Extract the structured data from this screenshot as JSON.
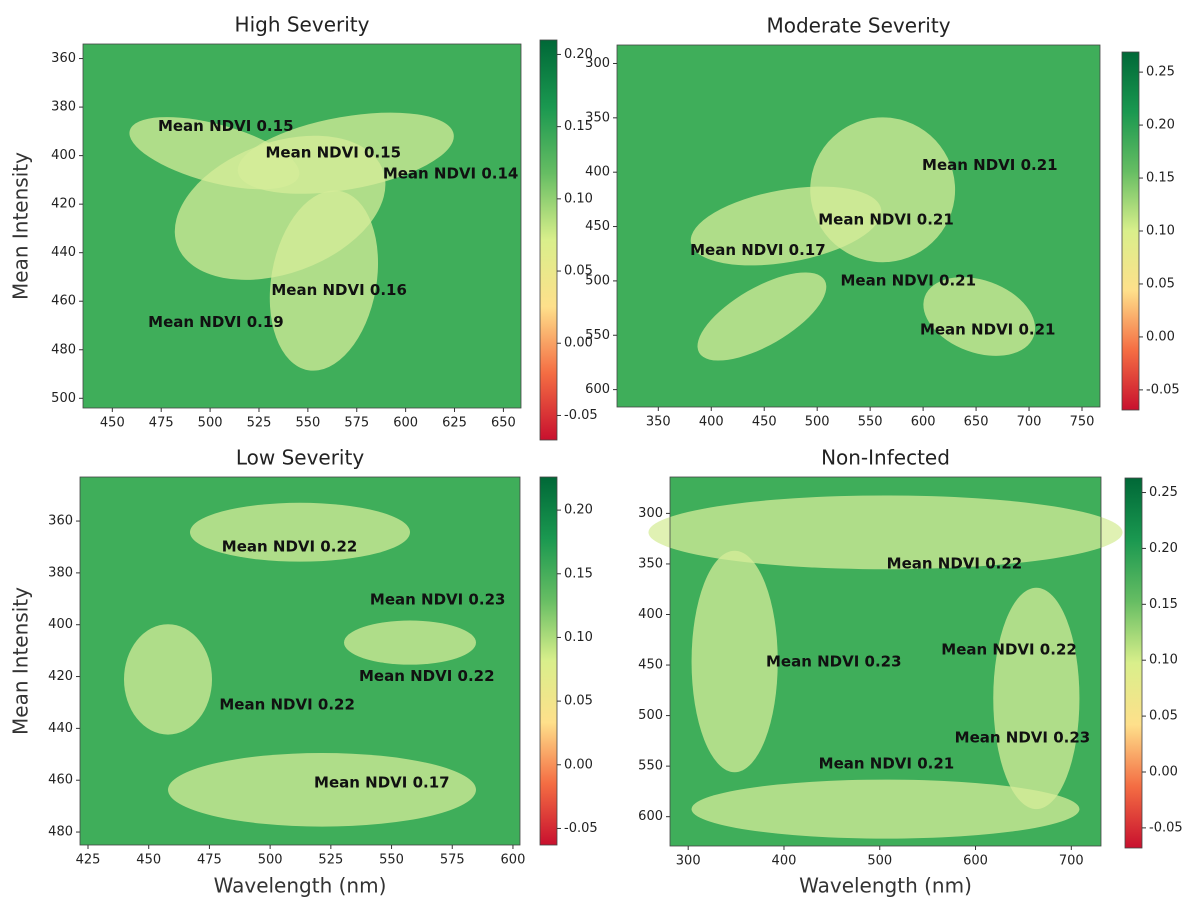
{
  "chart_data": [
    {
      "type": "heatmap",
      "title": "High Severity",
      "ylabel": "Mean Intensity",
      "xlim": [
        435,
        659
      ],
      "xticks": [
        450,
        475,
        500,
        525,
        550,
        575,
        600,
        625,
        650
      ],
      "ylim": [
        354,
        504
      ],
      "yinverted": true,
      "yticks": [
        360,
        380,
        400,
        420,
        440,
        460,
        480,
        500
      ],
      "colorbar": {
        "lim": [
          -0.067,
          0.21
        ],
        "ticks": [
          -0.05,
          {
            "value": 0,
            "label": "0.00"
          },
          0.05,
          {
            "value": 0.1,
            "label": "0.10"
          },
          0.15,
          {
            "value": 0.2,
            "label": "0.20"
          }
        ]
      },
      "colormap": [
        "#c8102e",
        "#f46d43",
        "#fee08b",
        "#d9ef8b",
        "#66bd63",
        "#1a9850",
        "#006837"
      ],
      "annotations": [
        {
          "text": "Mean NDVI 0.15",
          "x": 508,
          "y": 388
        },
        {
          "text": "Mean NDVI 0.15",
          "x": 563,
          "y": 399
        },
        {
          "text": "Mean NDVI 0.14",
          "x": 623,
          "y": 407.5
        },
        {
          "text": "Mean NDVI 0.16",
          "x": 566,
          "y": 455.6
        },
        {
          "text": "Mean NDVI 0.19",
          "x": 503,
          "y": 468.8
        }
      ]
    },
    {
      "type": "heatmap",
      "title": "Moderate Severity",
      "xlim": [
        311,
        767
      ],
      "xticks": [
        350,
        400,
        450,
        500,
        550,
        600,
        650,
        700,
        750
      ],
      "ylim": [
        283,
        616
      ],
      "yinverted": true,
      "yticks": [
        300,
        350,
        400,
        450,
        500,
        550,
        600
      ],
      "colorbar": {
        "lim": [
          -0.069,
          0.269
        ],
        "ticks": [
          -0.05,
          {
            "value": 0,
            "label": "0.00"
          },
          0.05,
          {
            "value": 0.1,
            "label": "0.10"
          },
          0.15,
          {
            "value": 0.2,
            "label": "0.20"
          },
          0.25
        ]
      },
      "colormap": [
        "#c8102e",
        "#f46d43",
        "#fee08b",
        "#d9ef8b",
        "#66bd63",
        "#1a9850",
        "#006837"
      ],
      "annotations": [
        {
          "text": "Mean NDVI 0.21",
          "x": 663,
          "y": 394
        },
        {
          "text": "Mean NDVI 0.21",
          "x": 565,
          "y": 444
        },
        {
          "text": "Mean NDVI 0.17",
          "x": 444,
          "y": 472
        },
        {
          "text": "Mean NDVI 0.21",
          "x": 586,
          "y": 500
        },
        {
          "text": "Mean NDVI 0.21",
          "x": 661,
          "y": 545
        }
      ]
    },
    {
      "type": "heatmap",
      "title": "Low Severity",
      "ylabel": "Mean Intensity",
      "xlabel": "Wavelength (nm)",
      "xlim": [
        421.7,
        602.9
      ],
      "xticks": [
        425,
        450,
        475,
        500,
        525,
        550,
        575,
        600
      ],
      "ylim": [
        343,
        485
      ],
      "yinverted": true,
      "yticks": [
        360,
        380,
        400,
        420,
        440,
        460,
        480
      ],
      "colorbar": {
        "lim": [
          -0.063,
          0.226
        ],
        "ticks": [
          -0.05,
          {
            "value": 0,
            "label": "0.00"
          },
          0.05,
          {
            "value": 0.1,
            "label": "0.10"
          },
          0.15,
          {
            "value": 0.2,
            "label": "0.20"
          }
        ]
      },
      "colormap": [
        "#c8102e",
        "#f46d43",
        "#fee08b",
        "#d9ef8b",
        "#66bd63",
        "#1a9850",
        "#006837"
      ],
      "annotations": [
        {
          "text": "Mean NDVI 0.22",
          "x": 508,
          "y": 370
        },
        {
          "text": "Mean NDVI 0.23",
          "x": 569,
          "y": 390.5
        },
        {
          "text": "Mean NDVI 0.22",
          "x": 564.5,
          "y": 420
        },
        {
          "text": "Mean NDVI 0.22",
          "x": 507,
          "y": 431
        },
        {
          "text": "Mean NDVI 0.17",
          "x": 546,
          "y": 461
        }
      ]
    },
    {
      "type": "heatmap",
      "title": "Non-Infected",
      "xlabel": "Wavelength (nm)",
      "xlim": [
        281,
        731
      ],
      "xticks": [
        300,
        400,
        500,
        600,
        700
      ],
      "ylim": [
        264,
        629
      ],
      "yinverted": true,
      "yticks": [
        300,
        350,
        400,
        450,
        500,
        550,
        600
      ],
      "colorbar": {
        "lim": [
          -0.068,
          0.263
        ],
        "ticks": [
          -0.05,
          {
            "value": 0,
            "label": "0.00"
          },
          0.05,
          {
            "value": 0.1,
            "label": "0.10"
          },
          0.15,
          {
            "value": 0.2,
            "label": "0.20"
          },
          0.25
        ]
      },
      "colormap": [
        "#c8102e",
        "#f46d43",
        "#fee08b",
        "#d9ef8b",
        "#66bd63",
        "#1a9850",
        "#006837"
      ],
      "annotations": [
        {
          "text": "Mean NDVI 0.22",
          "x": 578,
          "y": 350
        },
        {
          "text": "Mean NDVI 0.23",
          "x": 452,
          "y": 447
        },
        {
          "text": "Mean NDVI 0.22",
          "x": 635,
          "y": 435
        },
        {
          "text": "Mean NDVI 0.23",
          "x": 649,
          "y": 522
        },
        {
          "text": "Mean NDVI 0.21",
          "x": 507,
          "y": 548
        }
      ]
    }
  ]
}
